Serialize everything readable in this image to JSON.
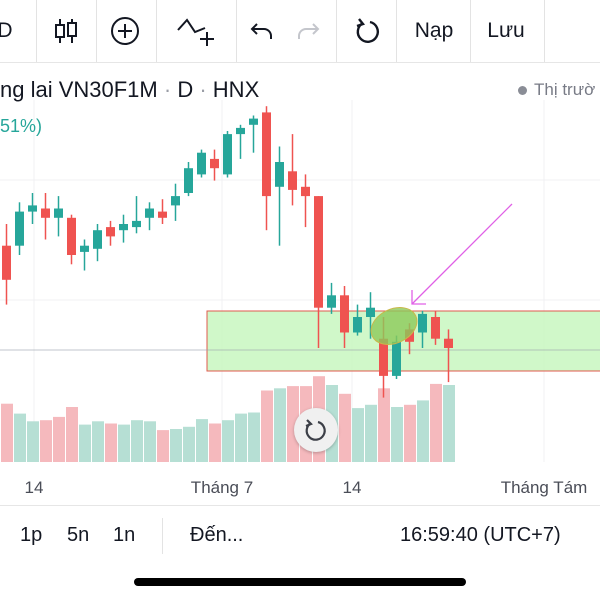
{
  "toolbar": {
    "cut_label": "D",
    "load_label": "Nạp",
    "save_label": "Lưu"
  },
  "symbol": {
    "name_partial": "ng lai VN30F1M",
    "interval": "D",
    "exchange": "HNX",
    "change_partial": "51%)"
  },
  "market_status": {
    "label": "Thị trườ"
  },
  "xaxis": {
    "labels": [
      "14",
      "Tháng 7",
      "14",
      "Tháng Tám"
    ]
  },
  "bottom": {
    "range_1": "1p",
    "range_2": "5n",
    "range_3": "1n",
    "goto_label": "Đến...",
    "clock": "16:59:40 (UTC+7)"
  },
  "colors": {
    "up": "#26a69a",
    "down": "#ef5350",
    "up_volume": "#b6dfd4",
    "down_volume": "#f5b9bd",
    "zone_fill": "#c8f7c0",
    "zone_border": "#e05a4e",
    "arrow": "#e060e6",
    "ellipse": "#8cc95a"
  },
  "icons": [
    "candlestick-icon",
    "add-circle-icon",
    "indicator-add-icon",
    "undo-icon",
    "redo-icon",
    "reload-icon",
    "reset-chart-icon"
  ],
  "chart_data": {
    "type": "candlestick",
    "candles": [
      {
        "o": 0.53,
        "h": 0.6,
        "l": 0.34,
        "c": 0.42
      },
      {
        "o": 0.53,
        "h": 0.67,
        "l": 0.5,
        "c": 0.64
      },
      {
        "o": 0.64,
        "h": 0.7,
        "l": 0.6,
        "c": 0.66
      },
      {
        "o": 0.65,
        "h": 0.7,
        "l": 0.55,
        "c": 0.62
      },
      {
        "o": 0.62,
        "h": 0.69,
        "l": 0.56,
        "c": 0.65
      },
      {
        "o": 0.62,
        "h": 0.63,
        "l": 0.47,
        "c": 0.5
      },
      {
        "o": 0.51,
        "h": 0.55,
        "l": 0.45,
        "c": 0.53
      },
      {
        "o": 0.52,
        "h": 0.6,
        "l": 0.48,
        "c": 0.58
      },
      {
        "o": 0.59,
        "h": 0.61,
        "l": 0.53,
        "c": 0.56
      },
      {
        "o": 0.58,
        "h": 0.63,
        "l": 0.54,
        "c": 0.6
      },
      {
        "o": 0.59,
        "h": 0.69,
        "l": 0.57,
        "c": 0.61
      },
      {
        "o": 0.62,
        "h": 0.67,
        "l": 0.58,
        "c": 0.65
      },
      {
        "o": 0.64,
        "h": 0.68,
        "l": 0.6,
        "c": 0.62
      },
      {
        "o": 0.66,
        "h": 0.73,
        "l": 0.61,
        "c": 0.69
      },
      {
        "o": 0.7,
        "h": 0.8,
        "l": 0.69,
        "c": 0.78
      },
      {
        "o": 0.76,
        "h": 0.84,
        "l": 0.75,
        "c": 0.83
      },
      {
        "o": 0.81,
        "h": 0.84,
        "l": 0.74,
        "c": 0.78
      },
      {
        "o": 0.76,
        "h": 0.9,
        "l": 0.75,
        "c": 0.89
      },
      {
        "o": 0.89,
        "h": 0.92,
        "l": 0.81,
        "c": 0.91
      },
      {
        "o": 0.92,
        "h": 0.95,
        "l": 0.83,
        "c": 0.94
      },
      {
        "o": 0.96,
        "h": 0.98,
        "l": 0.58,
        "c": 0.69
      },
      {
        "o": 0.72,
        "h": 0.85,
        "l": 0.53,
        "c": 0.8
      },
      {
        "o": 0.77,
        "h": 0.89,
        "l": 0.66,
        "c": 0.71
      },
      {
        "o": 0.72,
        "h": 0.76,
        "l": 0.59,
        "c": 0.69
      },
      {
        "o": 0.69,
        "h": 0.69,
        "l": 0.2,
        "c": 0.33
      },
      {
        "o": 0.33,
        "h": 0.41,
        "l": 0.31,
        "c": 0.37
      },
      {
        "o": 0.37,
        "h": 0.4,
        "l": 0.2,
        "c": 0.25
      },
      {
        "o": 0.25,
        "h": 0.34,
        "l": 0.24,
        "c": 0.3
      },
      {
        "o": 0.3,
        "h": 0.38,
        "l": 0.23,
        "c": 0.33
      },
      {
        "o": 0.23,
        "h": 0.3,
        "l": 0.04,
        "c": 0.11
      },
      {
        "o": 0.11,
        "h": 0.24,
        "l": 0.1,
        "c": 0.22
      },
      {
        "o": 0.26,
        "h": 0.28,
        "l": 0.18,
        "c": 0.22
      },
      {
        "o": 0.25,
        "h": 0.32,
        "l": 0.2,
        "c": 0.31
      },
      {
        "o": 0.3,
        "h": 0.32,
        "l": 0.21,
        "c": 0.23
      },
      {
        "o": 0.23,
        "h": 0.26,
        "l": 0.09,
        "c": 0.2
      }
    ],
    "volume": [
      {
        "v": 0.53,
        "up": false
      },
      {
        "v": 0.44,
        "up": true
      },
      {
        "v": 0.37,
        "up": true
      },
      {
        "v": 0.38,
        "up": false
      },
      {
        "v": 0.41,
        "up": false
      },
      {
        "v": 0.5,
        "up": false
      },
      {
        "v": 0.34,
        "up": true
      },
      {
        "v": 0.37,
        "up": true
      },
      {
        "v": 0.35,
        "up": false
      },
      {
        "v": 0.34,
        "up": true
      },
      {
        "v": 0.38,
        "up": true
      },
      {
        "v": 0.37,
        "up": true
      },
      {
        "v": 0.29,
        "up": false
      },
      {
        "v": 0.3,
        "up": true
      },
      {
        "v": 0.32,
        "up": true
      },
      {
        "v": 0.39,
        "up": true
      },
      {
        "v": 0.35,
        "up": false
      },
      {
        "v": 0.38,
        "up": true
      },
      {
        "v": 0.44,
        "up": true
      },
      {
        "v": 0.45,
        "up": true
      },
      {
        "v": 0.65,
        "up": false
      },
      {
        "v": 0.67,
        "up": true
      },
      {
        "v": 0.69,
        "up": false
      },
      {
        "v": 0.69,
        "up": false
      },
      {
        "v": 0.78,
        "up": false
      },
      {
        "v": 0.7,
        "up": true
      },
      {
        "v": 0.62,
        "up": false
      },
      {
        "v": 0.49,
        "up": true
      },
      {
        "v": 0.52,
        "up": true
      },
      {
        "v": 0.67,
        "up": false
      },
      {
        "v": 0.5,
        "up": true
      },
      {
        "v": 0.52,
        "up": false
      },
      {
        "v": 0.56,
        "up": true
      },
      {
        "v": 0.71,
        "up": false
      },
      {
        "v": 0.7,
        "up": true
      }
    ]
  }
}
